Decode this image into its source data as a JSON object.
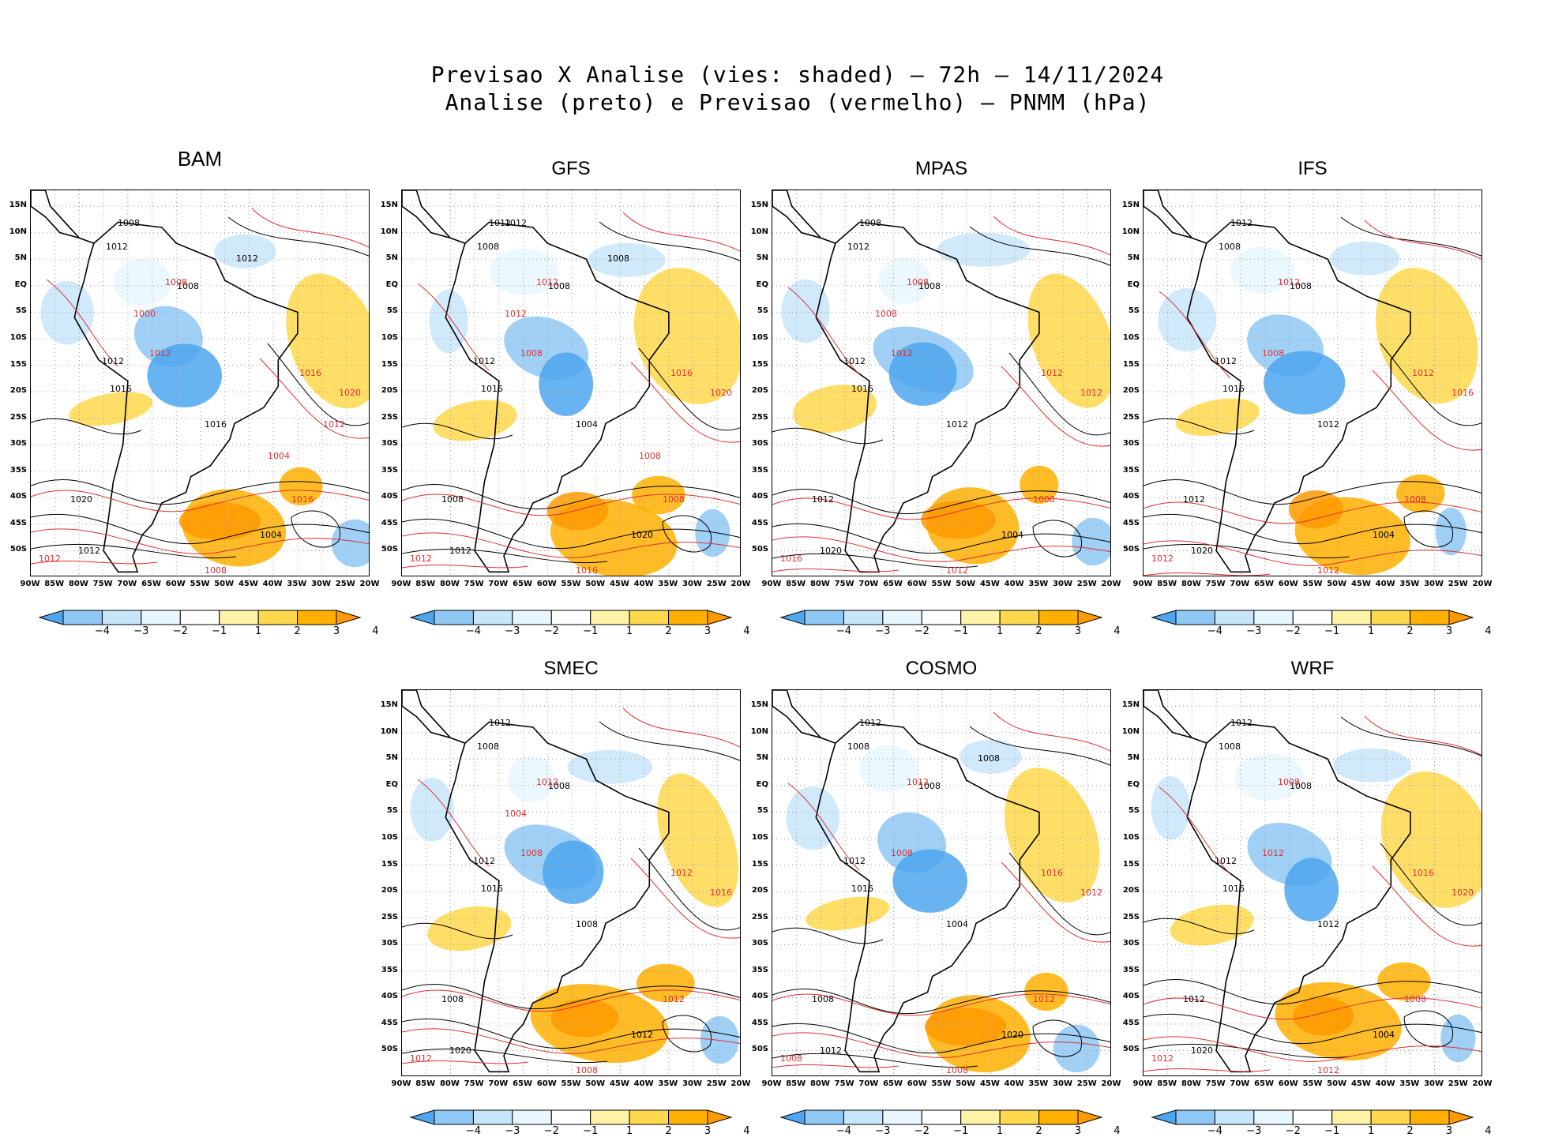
{
  "figure": {
    "title_line1": "Previsao X Analise (vies: shaded) – 72h – 14/11/2024",
    "title_line2": "Analise (preto) e Previsao (vermelho) – PNMM (hPa)"
  },
  "lat_labels": [
    "15N",
    "10N",
    "5N",
    "EQ",
    "5S",
    "10S",
    "15S",
    "20S",
    "25S",
    "30S",
    "35S",
    "40S",
    "45S",
    "50S"
  ],
  "lon_labels": [
    "90W",
    "85W",
    "80W",
    "75W",
    "70W",
    "65W",
    "60W",
    "55W",
    "50W",
    "45W",
    "40W",
    "35W",
    "30W",
    "25W",
    "20W"
  ],
  "colorbar": {
    "labels": [
      "-4",
      "-3",
      "-2",
      "-1",
      "1",
      "2",
      "3",
      "4"
    ],
    "colors": [
      "#4da6ef",
      "#8fc8f5",
      "#c8e6fb",
      "#e8f7ff",
      "#ffffff",
      "#fff3a8",
      "#ffd84d",
      "#ffb000",
      "#ff9a00"
    ]
  },
  "contour_colors": {
    "analysis": "#000000",
    "forecast": "#e03030"
  },
  "panels": [
    {
      "name": "BAM",
      "isobars_black": [
        "1008",
        "1012",
        "1008",
        "1012",
        "1016",
        "1020",
        "1012",
        "1004",
        "1008",
        "1016",
        "1012"
      ],
      "isobars_red": [
        "1008",
        "1012",
        "1016",
        "1020",
        "1012",
        "1016",
        "1008",
        "1000",
        "1004",
        "1012"
      ]
    },
    {
      "name": "GFS",
      "isobars_black": [
        "1012",
        "1008",
        "1008",
        "1012",
        "1016",
        "1008",
        "1012",
        "1020",
        "1012",
        "1004",
        "1008",
        "1012"
      ],
      "isobars_red": [
        "1012",
        "1008",
        "1016",
        "1020",
        "1012",
        "1008",
        "1016",
        "1012",
        "1008"
      ]
    },
    {
      "name": "MPAS",
      "isobars_black": [
        "1008",
        "1012",
        "1008",
        "1012",
        "1016",
        "1012",
        "1020",
        "1004",
        "1008",
        "1012"
      ],
      "isobars_red": [
        "1008",
        "1012",
        "1012",
        "1012",
        "1016",
        "1008",
        "1012",
        "1008"
      ]
    },
    {
      "name": "IFS",
      "isobars_black": [
        "1012",
        "1008",
        "1008",
        "1012",
        "1016",
        "1012",
        "1020",
        "1004",
        "1008",
        "1012"
      ],
      "isobars_red": [
        "1012",
        "1008",
        "1012",
        "1016",
        "1012",
        "1008",
        "1012"
      ]
    },
    {
      "name": "SMEC",
      "isobars_black": [
        "1012",
        "1008",
        "1008",
        "1012",
        "1016",
        "1008",
        "1020",
        "1012",
        "1004",
        "1008"
      ],
      "isobars_red": [
        "1012",
        "1008",
        "1012",
        "1016",
        "1012",
        "1012",
        "1008",
        "1004"
      ]
    },
    {
      "name": "COSMO",
      "isobars_black": [
        "1012",
        "1008",
        "1008",
        "1012",
        "1016",
        "1008",
        "1012",
        "1020",
        "1012",
        "1004",
        "1008"
      ],
      "isobars_red": [
        "1012",
        "1008",
        "1016",
        "1012",
        "1008",
        "1012",
        "1008"
      ]
    },
    {
      "name": "WRF",
      "isobars_black": [
        "1012",
        "1008",
        "1008",
        "1012",
        "1016",
        "1012",
        "1020",
        "1004",
        "1008",
        "1012"
      ],
      "isobars_red": [
        "1008",
        "1012",
        "1016",
        "1020",
        "1012",
        "1008",
        "1012"
      ]
    }
  ]
}
